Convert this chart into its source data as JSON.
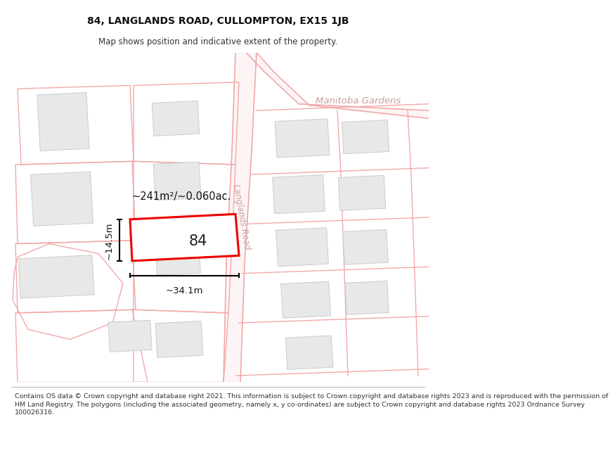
{
  "title": "84, LANGLANDS ROAD, CULLOMPTON, EX15 1JB",
  "subtitle": "Map shows position and indicative extent of the property.",
  "footer": "Contains OS data © Crown copyright and database right 2021. This information is subject to Crown copyright and database rights 2023 and is reproduced with the permission of\nHM Land Registry. The polygons (including the associated geometry, namely x, y co-ordinates) are subject to Crown copyright and database rights 2023 Ordnance Survey\n100026316.",
  "background_color": "#ffffff",
  "road_color": "#f2a8a8",
  "road_fill": "#fbe8e8",
  "building_fill": "#e8e8e8",
  "building_stroke": "#cccccc",
  "plot_stroke": "#f2a8a8",
  "highlight_color": "#ee0000",
  "highlight_fill": "#ffffff",
  "road_label_color": "#c8a0a0",
  "street_label": "Langlands Road",
  "area_label": "Manitoba Gardens",
  "measurement_label": "~241m²/~0.060ac.",
  "width_label": "~34.1m",
  "height_label": "~14.5m",
  "property_number": "84",
  "title_fontsize": 10,
  "subtitle_fontsize": 8.5,
  "footer_fontsize": 6.8
}
